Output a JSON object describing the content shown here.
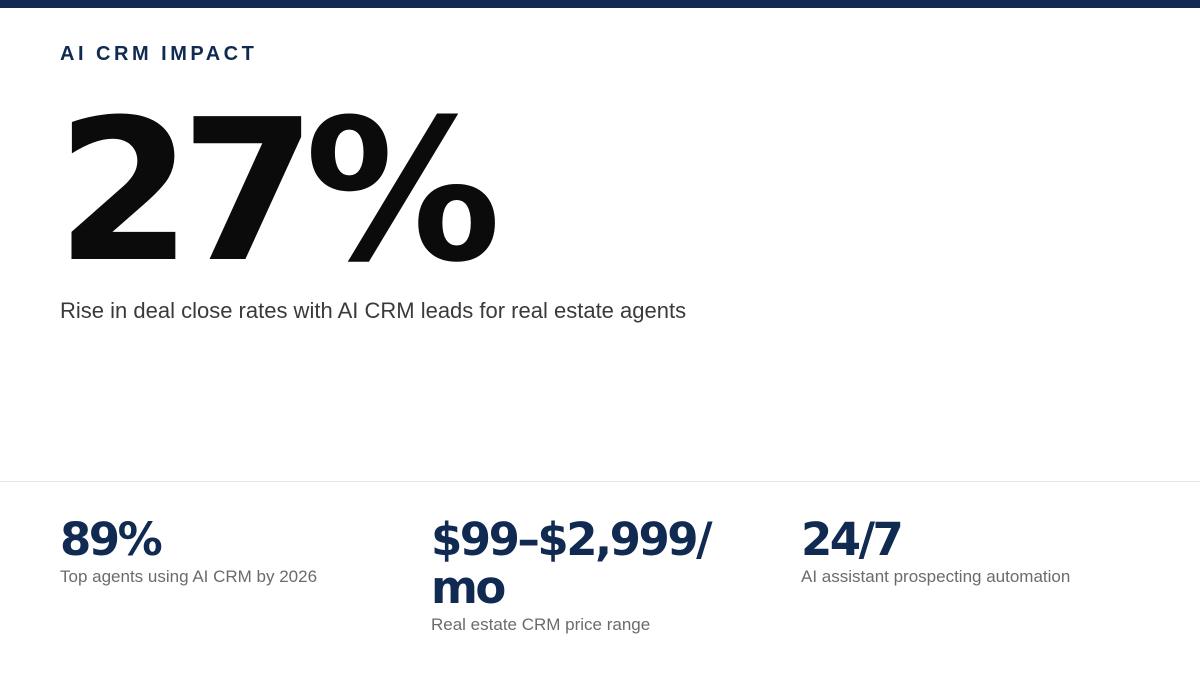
{
  "colors": {
    "navy": "#112a52",
    "hero_text": "#0b0b0b",
    "caption_text": "#3a3a3a",
    "label_text": "#6b6b6b",
    "divider": "#e3e3e3"
  },
  "header": {
    "eyebrow": "AI CRM IMPACT"
  },
  "hero": {
    "value": "27%",
    "caption": "Rise in deal close rates with AI CRM leads for real estate agents"
  },
  "stats": [
    {
      "value": "89%",
      "label": "Top agents using AI CRM by 2026"
    },
    {
      "value": "$99–$2,999/ mo",
      "label": "Real estate CRM price range"
    },
    {
      "value": "24/7",
      "label": "AI assistant prospecting automation"
    }
  ]
}
